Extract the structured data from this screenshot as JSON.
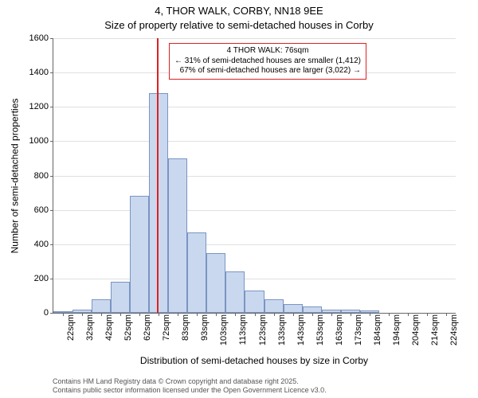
{
  "title_line1": "4, THOR WALK, CORBY, NN18 9EE",
  "title_line2": "Size of property relative to semi-detached houses in Corby",
  "ylabel": "Number of semi-detached properties",
  "xlabel": "Distribution of semi-detached houses by size in Corby",
  "ylim": [
    0,
    1600
  ],
  "ytick_step": 200,
  "yticks": [
    "0",
    "200",
    "400",
    "600",
    "800",
    "1000",
    "1200",
    "1400",
    "1600"
  ],
  "bar_color": "#c9d8ef",
  "bar_border_color": "#7a95c2",
  "refline_color": "#d22",
  "grid_color": "#e0e0e0",
  "background_color": "#ffffff",
  "type": "histogram",
  "categories": [
    "22sqm",
    "32sqm",
    "42sqm",
    "52sqm",
    "62sqm",
    "72sqm",
    "83sqm",
    "93sqm",
    "103sqm",
    "113sqm",
    "123sqm",
    "133sqm",
    "143sqm",
    "153sqm",
    "163sqm",
    "173sqm",
    "184sqm",
    "194sqm",
    "204sqm",
    "214sqm",
    "224sqm"
  ],
  "values": [
    5,
    20,
    80,
    180,
    680,
    1280,
    900,
    470,
    350,
    240,
    130,
    80,
    50,
    35,
    20,
    18,
    12,
    0,
    0,
    0,
    0
  ],
  "ref_index": 5.4,
  "annotation": {
    "line1": "4 THOR WALK: 76sqm",
    "line2": "← 31% of semi-detached houses are smaller (1,412)",
    "line3": "67% of semi-detached houses are larger (3,022) →"
  },
  "footer_line1": "Contains HM Land Registry data © Crown copyright and database right 2025.",
  "footer_line2": "Contains public sector information licensed under the Open Government Licence v3.0.",
  "title_fontsize": 13,
  "label_fontsize": 12,
  "tick_fontsize": 11,
  "anno_fontsize": 10,
  "footer_fontsize": 9
}
